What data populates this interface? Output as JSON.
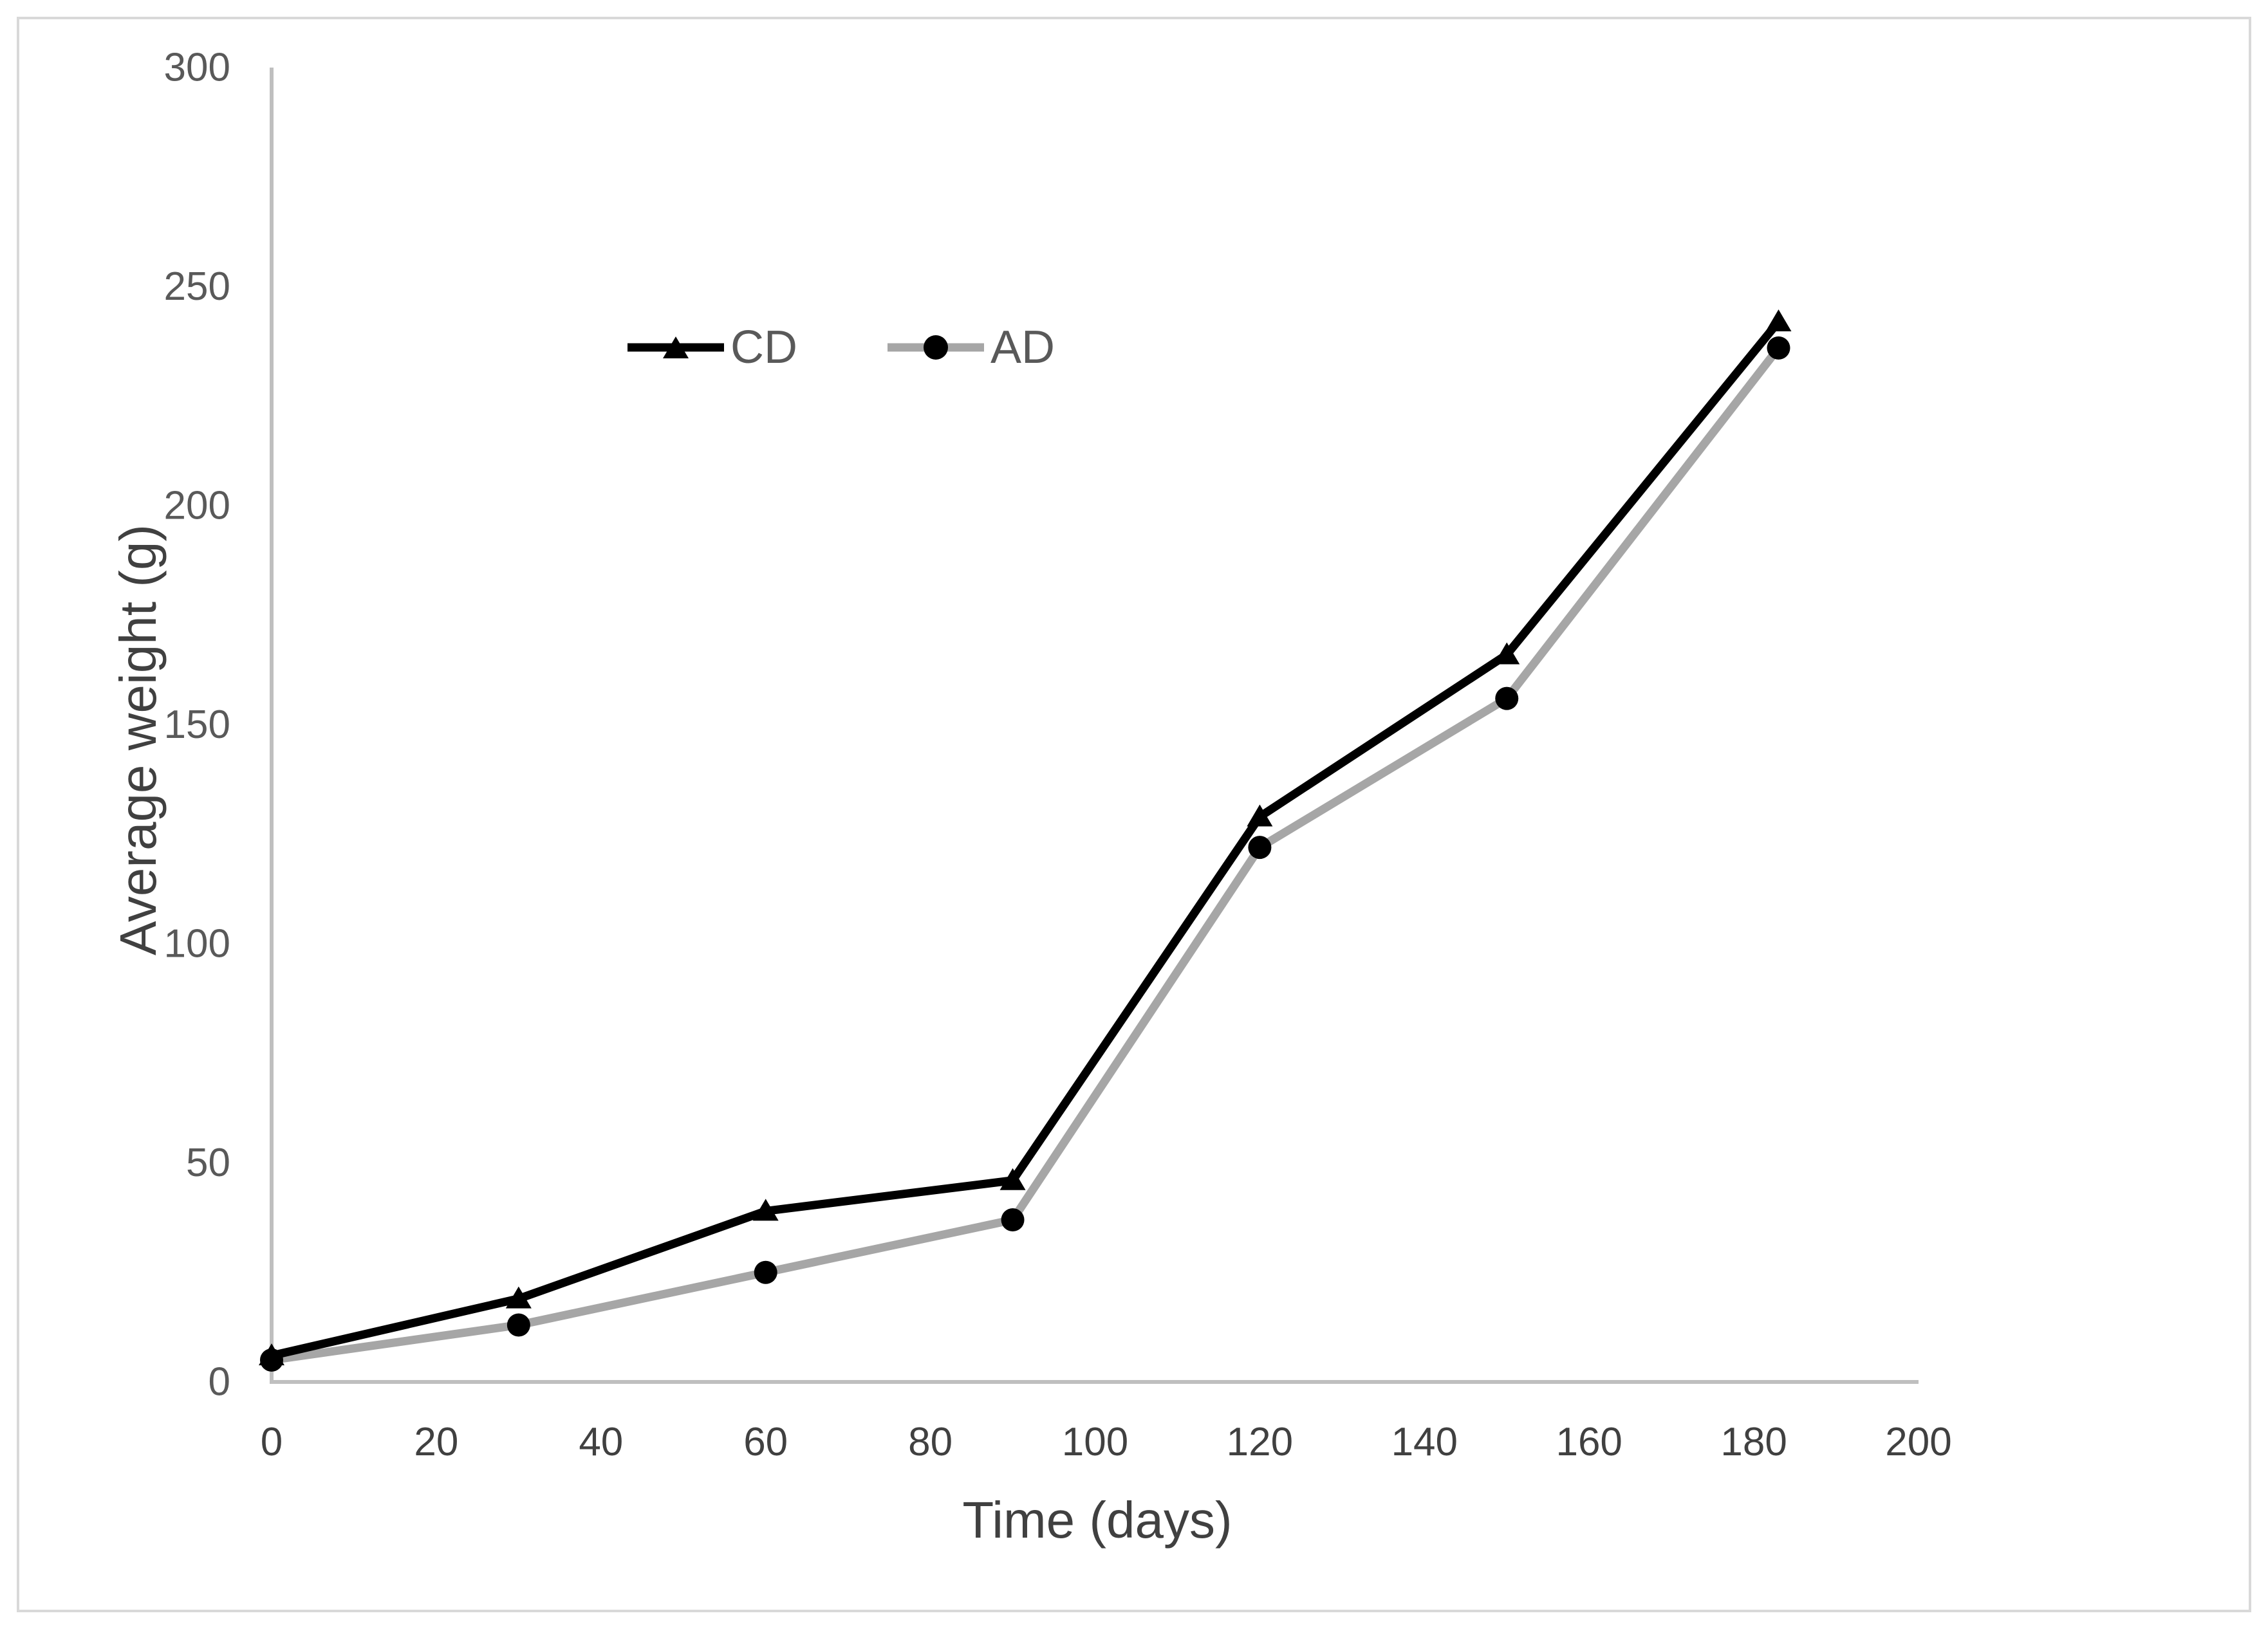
{
  "chart_data": {
    "type": "line",
    "title": "",
    "xlabel": "Time (days)",
    "ylabel": "Average weight (g)",
    "x": [
      0,
      30,
      60,
      90,
      120,
      150,
      183
    ],
    "series": [
      {
        "name": "CD",
        "marker": "triangle",
        "line_color": "#000000",
        "marker_color": "#000000",
        "values": [
          6,
          19,
          39,
          46,
          129,
          166,
          242
        ]
      },
      {
        "name": "AD",
        "marker": "circle",
        "line_color": "#a6a6a6",
        "marker_color": "#000000",
        "values": [
          5,
          13,
          25,
          37,
          122,
          156,
          236
        ]
      }
    ],
    "x_ticks": [
      0,
      20,
      40,
      60,
      80,
      100,
      120,
      140,
      160,
      180,
      200
    ],
    "y_ticks": [
      0,
      50,
      100,
      150,
      200,
      250,
      300
    ],
    "xlim": [
      0,
      200
    ],
    "ylim": [
      0,
      300
    ],
    "grid": false,
    "legend_position": "top-center"
  },
  "colors": {
    "background": "#ffffff",
    "border": "#d9d9d9",
    "axis_line": "#bfbfbf",
    "y_tick_label": "#595959",
    "x_tick_label": "#404040",
    "axis_title": "#404040",
    "legend_text": "#595959"
  }
}
